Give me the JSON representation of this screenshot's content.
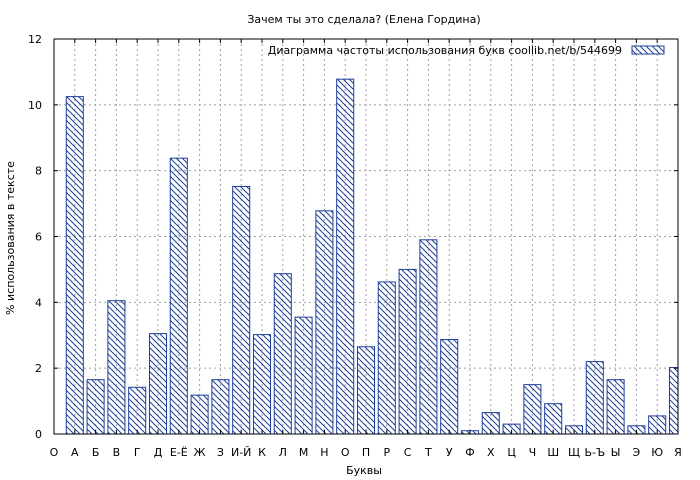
{
  "chart_data": {
    "type": "bar",
    "title": "Зачем ты это сделала? (Елена Гордина)",
    "xlabel": "Буквы",
    "ylabel": "% использования в тексте",
    "legend": {
      "label": "Диаграмма частоты использования букв  coollib.net/b/544699",
      "placement": "top-right"
    },
    "ylim": [
      0,
      12
    ],
    "yticks": [
      "0",
      "2",
      "4",
      "6",
      "8",
      "10",
      "12"
    ],
    "grid": true,
    "bar_color": "#1f3f9a",
    "categories": [
      "О",
      "А",
      "Б",
      "В",
      "Г",
      "Д",
      "Е-Ё",
      "Ж",
      "З",
      "И-Й",
      "К",
      "Л",
      "М",
      "Н",
      "О",
      "П",
      "Р",
      "С",
      "Т",
      "У",
      "Ф",
      "Х",
      "Ц",
      "Ч",
      "Ш",
      "Щ",
      "Ь-Ъ",
      "Ы",
      "Э",
      "Ю",
      "Я"
    ],
    "values": [
      null,
      10.25,
      1.65,
      4.05,
      1.42,
      3.05,
      8.38,
      1.18,
      1.65,
      7.52,
      3.02,
      4.87,
      3.55,
      6.78,
      10.78,
      2.65,
      4.62,
      5.0,
      5.9,
      2.87,
      0.1,
      0.65,
      0.3,
      1.5,
      0.92,
      0.25,
      2.2,
      1.65,
      0.25,
      0.55,
      2.02
    ]
  }
}
